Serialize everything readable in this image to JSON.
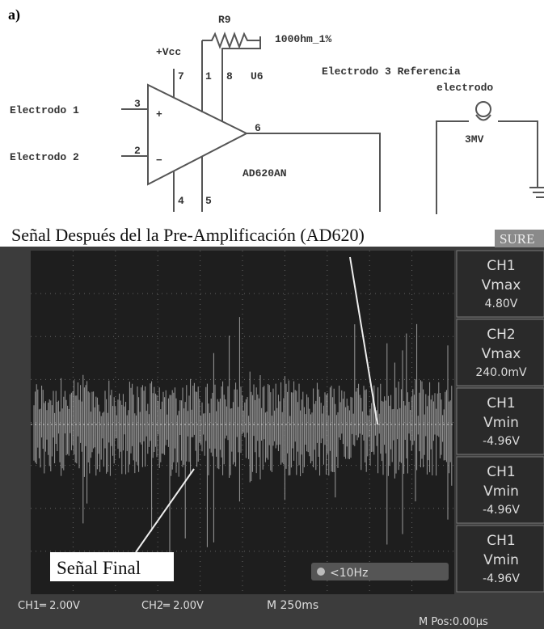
{
  "figure_label": "a)",
  "schematic": {
    "resistor_name": "R9",
    "resistor_value": "1000hm_1%",
    "supply": "+Vcc",
    "pins": {
      "p7": "7",
      "p1": "1",
      "p8": "8",
      "p3": "3",
      "p2": "2",
      "p6": "6",
      "p4": "4",
      "p5": "5"
    },
    "unit": "U6",
    "plus": "+",
    "minus": "−",
    "part": "AD620AN",
    "input1": "Electrodo 1",
    "input2": "Electrodo 2",
    "reference_line1": "Electrodo 3 Referencia",
    "reference_line2": "electrodo",
    "source": "3MV"
  },
  "caption": "Señal Después del la Pre-Amplificación (AD620)",
  "scope": {
    "menu_tab": "SURE",
    "measurements": [
      {
        "channel": "CH1",
        "name": "Vmax",
        "value": "4.80V"
      },
      {
        "channel": "CH2",
        "name": "Vmax",
        "value": "240.0mV"
      },
      {
        "channel": "CH1",
        "name": "Vmin",
        "value": "-4.96V"
      },
      {
        "channel": "CH1",
        "name": "Vmin",
        "value": "-4.96V"
      },
      {
        "channel": "CH1",
        "name": "Vmin",
        "value": "-4.96V"
      }
    ],
    "final_label": "Señal Final",
    "filter": "<10Hz",
    "ch1_scale": "CH1═ 2.00V",
    "ch2_scale": "CH2═ 2.00V",
    "timebase": "M 250ms",
    "position": "M Pos:0.00µs"
  }
}
